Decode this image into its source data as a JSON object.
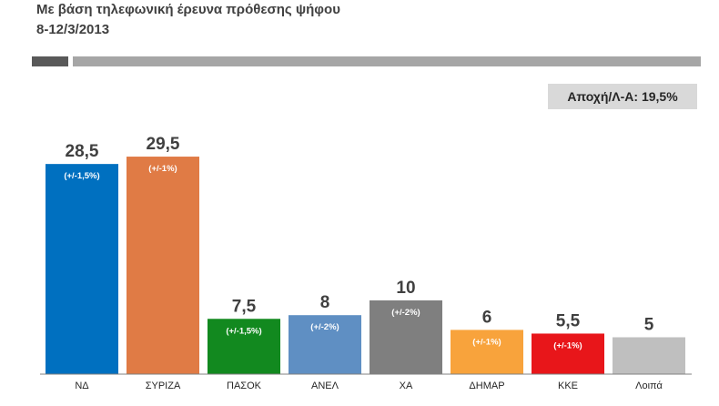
{
  "header": {
    "title": "Με βάση τηλεφωνική έρευνα πρόθεσης ψήφου",
    "subtitle": "8-12/3/2013"
  },
  "note": {
    "abstention": "Αποχή/Λ-Α: 19,5%"
  },
  "chart_data": {
    "type": "bar",
    "categories": [
      "ΝΔ",
      "ΣΥΡΙΖΑ",
      "ΠΑΣΟΚ",
      "ΑΝΕΛ",
      "ΧΑ",
      "ΔΗΜΑΡ",
      "ΚΚΕ",
      "Λοιπά"
    ],
    "values": [
      28.5,
      29.5,
      7.5,
      8,
      10,
      6,
      5.5,
      5
    ],
    "value_labels": [
      "28,5",
      "29,5",
      "7,5",
      "8",
      "10",
      "6",
      "5,5",
      "5"
    ],
    "margins": [
      "(+/-1,5%)",
      "(+/-1%)",
      "(+/-1,5%)",
      "(+/-2%)",
      "(+/-2%)",
      "(+/-1%)",
      "(+/-1%)",
      ""
    ],
    "colors": [
      "#0070c0",
      "#e07b45",
      "#12891f",
      "#5f8fc3",
      "#7f7f7f",
      "#f8a33c",
      "#e8161a",
      "#bfbfbf"
    ],
    "ylim": [
      0,
      32
    ],
    "grid": false,
    "legend": "none"
  }
}
